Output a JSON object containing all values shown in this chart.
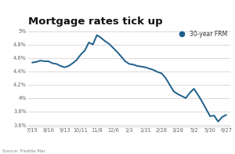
{
  "title": "Mortgage rates tick up",
  "legend_label": "30-year FRM",
  "source": "Source: Freddie Mac",
  "line_color": "#1f5f8b",
  "marker_color": "#1f5f8b",
  "background_color": "#ffffff",
  "grid_color": "#cccccc",
  "ylim": [
    3.58,
    5.05
  ],
  "yticks": [
    3.6,
    3.8,
    4.0,
    4.2,
    4.4,
    4.6,
    4.8,
    5.0
  ],
  "xtick_labels": [
    "7/19",
    "8/16",
    "9/13",
    "10/11",
    "11/8",
    "12/6",
    "1/3",
    "1/31",
    "2/28",
    "3/28",
    "5/2",
    "5/30",
    "6/27"
  ],
  "x_values": [
    0,
    4,
    8,
    12,
    16,
    20,
    24,
    28,
    32,
    36,
    40,
    44,
    48
  ],
  "dense_x": [
    0,
    1,
    2,
    3,
    4,
    5,
    6,
    7,
    8,
    9,
    10,
    11,
    12,
    13,
    14,
    15,
    16,
    17,
    18,
    19,
    20,
    21,
    22,
    23,
    24,
    25,
    26,
    27,
    28,
    29,
    30,
    31,
    32,
    33,
    34,
    35,
    36,
    37,
    38,
    39,
    40,
    41,
    42,
    43,
    44,
    45,
    46,
    47,
    48
  ],
  "dense_y": [
    4.53,
    4.54,
    4.56,
    4.55,
    4.55,
    4.52,
    4.51,
    4.48,
    4.46,
    4.48,
    4.52,
    4.57,
    4.65,
    4.71,
    4.83,
    4.8,
    4.94,
    4.9,
    4.85,
    4.81,
    4.75,
    4.69,
    4.62,
    4.55,
    4.51,
    4.5,
    4.48,
    4.47,
    4.46,
    4.44,
    4.42,
    4.39,
    4.37,
    4.3,
    4.2,
    4.1,
    4.06,
    4.03,
    4.0,
    4.08,
    4.14,
    4.05,
    3.95,
    3.84,
    3.73,
    3.74,
    3.65,
    3.72,
    3.75
  ]
}
